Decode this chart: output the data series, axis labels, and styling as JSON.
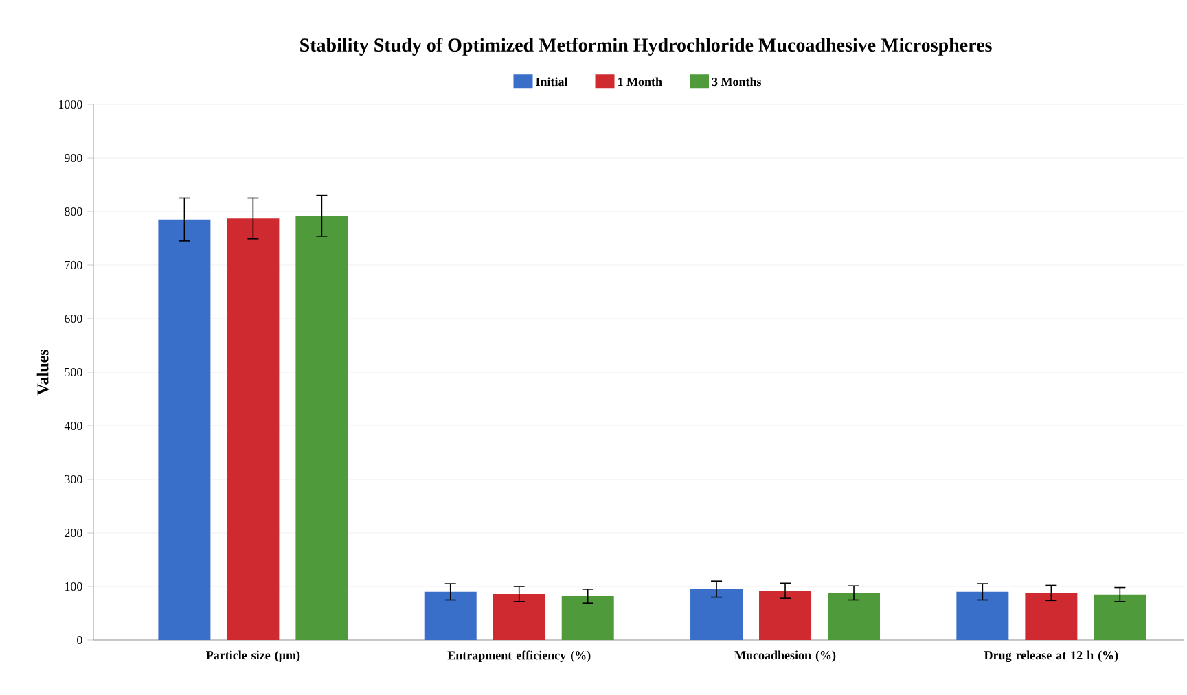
{
  "chart_data": {
    "type": "bar",
    "title": "Stability Study of Optimized Metformin Hydrochloride Mucoadhesive Microspheres",
    "ylabel": "Values",
    "categories": [
      "Particle size (µm)",
      "Entrapment efficiency (%)",
      "Mucoadhesion (%)",
      "Drug release at 12 h (%)"
    ],
    "series": [
      {
        "name": "Initial",
        "color": "#3a6fc9",
        "values": [
          785,
          90,
          95,
          90
        ],
        "errors": [
          40,
          15,
          15,
          15
        ]
      },
      {
        "name": "1 Month",
        "color": "#cf2a2f",
        "values": [
          787,
          86,
          92,
          88
        ],
        "errors": [
          38,
          14,
          14,
          14
        ]
      },
      {
        "name": "3 Months",
        "color": "#4f9a3b",
        "values": [
          792,
          82,
          88,
          85
        ],
        "errors": [
          38,
          13,
          13,
          13
        ]
      }
    ],
    "ylim": [
      0,
      1000
    ],
    "yticks": [
      0,
      100,
      200,
      300,
      400,
      500,
      600,
      700,
      800,
      900,
      1000
    ],
    "grid": "y",
    "legend": "top"
  }
}
